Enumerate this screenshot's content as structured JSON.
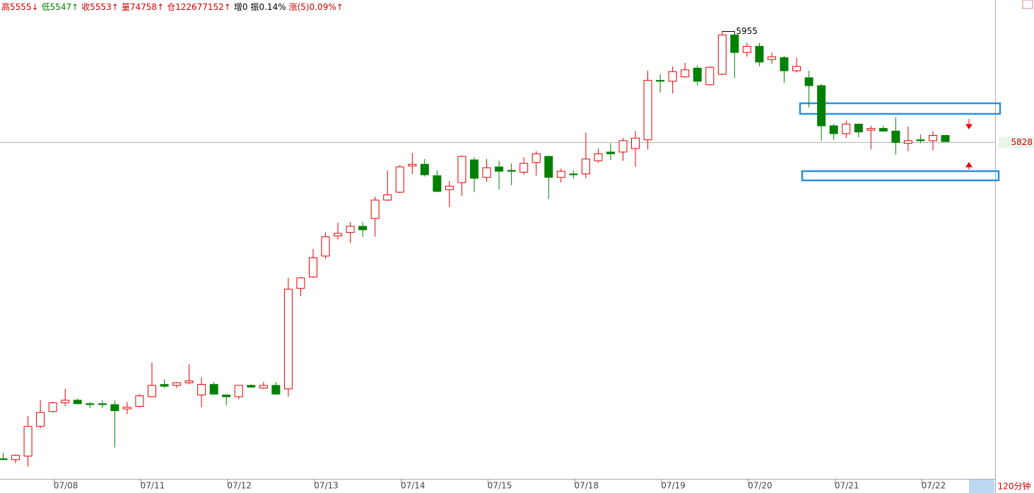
{
  "chart_data": {
    "type": "candlestick",
    "header": [
      {
        "text": "高5555↓",
        "color": "#d00000"
      },
      {
        "text": "低5547↑",
        "color": "#008000"
      },
      {
        "text": "收5553↑",
        "color": "#d00000"
      },
      {
        "text": "量74758↑",
        "color": "#d00000"
      },
      {
        "text": "仓122677152↑",
        "color": "#d00000"
      },
      {
        "text": "增0",
        "color": "#000000"
      },
      {
        "text": "振0.14%",
        "color": "#000000"
      },
      {
        "text": "涨(5)0.09%↑",
        "color": "#d00000"
      }
    ],
    "period": "120分钟",
    "categories": [
      null,
      null,
      null,
      null,
      "07/08",
      null,
      null,
      null,
      null,
      null,
      null,
      "07/11",
      null,
      null,
      null,
      null,
      null,
      null,
      "07/12",
      null,
      null,
      null,
      null,
      null,
      null,
      "07/13",
      null,
      null,
      null,
      null,
      null,
      null,
      "07/14",
      null,
      null,
      null,
      null,
      null,
      null,
      "07/15",
      null,
      null,
      null,
      null,
      null,
      null,
      "07/18",
      null,
      null,
      null,
      null,
      null,
      null,
      "07/19",
      null,
      null,
      null,
      null,
      null,
      null,
      "07/20",
      null,
      null,
      null,
      null,
      null,
      null,
      "07/21",
      null,
      null,
      null,
      null,
      null,
      null,
      "07/22",
      null,
      null
    ],
    "open": [
      5466,
      5465,
      5469,
      5503,
      5520,
      5530,
      5533,
      5529,
      5529,
      5528,
      5523,
      5526,
      5537,
      5551,
      5550,
      5553,
      5539,
      5551,
      5539,
      5537,
      5550,
      5547,
      5550,
      5546,
      5661,
      5674,
      5698,
      5721,
      5725,
      5732,
      5741,
      5762,
      5771,
      5801,
      5803,
      5790,
      5774,
      5782,
      5808,
      5788,
      5800,
      5796,
      5794,
      5805,
      5812,
      5788,
      5792,
      5792,
      5807,
      5817,
      5817,
      5821,
      5831,
      5899,
      5898,
      5903,
      5913,
      5894,
      5906,
      5951,
      5931,
      5938,
      5923,
      5925,
      5910,
      5902,
      5893,
      5847,
      5838,
      5849,
      5842,
      5844,
      5841,
      5827,
      5831,
      5830,
      5836
    ],
    "high": [
      5473,
      5471,
      5515,
      5533,
      5531,
      5546,
      5535,
      5531,
      5533,
      5533,
      5531,
      5540,
      5576,
      5557,
      5554,
      5574,
      5559,
      5554,
      5539,
      5550,
      5551,
      5554,
      5554,
      5673,
      5674,
      5706,
      5725,
      5736,
      5737,
      5737,
      5766,
      5796,
      5802,
      5816,
      5809,
      5796,
      5784,
      5813,
      5811,
      5809,
      5807,
      5804,
      5811,
      5818,
      5813,
      5798,
      5796,
      5839,
      5821,
      5827,
      5833,
      5841,
      5910,
      5906,
      5915,
      5919,
      5916,
      5915,
      5955,
      5953,
      5942,
      5942,
      5931,
      5927,
      5925,
      5910,
      5895,
      5849,
      5853,
      5849,
      5847,
      5847,
      5857,
      5846,
      5837,
      5841,
      5836
    ],
    "low": [
      5464,
      5461,
      5457,
      5501,
      5519,
      5526,
      5528,
      5524,
      5524,
      5479,
      5517,
      5525,
      5537,
      5547,
      5547,
      5551,
      5525,
      5539,
      5527,
      5534,
      5547,
      5546,
      5539,
      5537,
      5652,
      5673,
      5695,
      5717,
      5713,
      5720,
      5720,
      5761,
      5770,
      5792,
      5789,
      5771,
      5754,
      5767,
      5771,
      5783,
      5774,
      5779,
      5791,
      5790,
      5763,
      5782,
      5787,
      5787,
      5805,
      5808,
      5807,
      5800,
      5820,
      5885,
      5884,
      5902,
      5893,
      5893,
      5905,
      5902,
      5926,
      5915,
      5918,
      5896,
      5908,
      5868,
      5830,
      5831,
      5833,
      5834,
      5820,
      5840,
      5814,
      5818,
      5827,
      5819,
      5829
    ],
    "close": [
      5465,
      5470,
      5503,
      5519,
      5530,
      5533,
      5529,
      5528,
      5528,
      5521,
      5525,
      5538,
      5550,
      5549,
      5553,
      5555,
      5551,
      5540,
      5537,
      5550,
      5548,
      5550,
      5540,
      5660,
      5673,
      5696,
      5720,
      5724,
      5732,
      5728,
      5762,
      5768,
      5800,
      5803,
      5791,
      5772,
      5778,
      5812,
      5787,
      5799,
      5795,
      5795,
      5804,
      5815,
      5788,
      5795,
      5791,
      5809,
      5815,
      5815,
      5830,
      5833,
      5899,
      5898,
      5909,
      5911,
      5898,
      5914,
      5951,
      5931,
      5938,
      5920,
      5926,
      5910,
      5915,
      5893,
      5847,
      5838,
      5849,
      5840,
      5844,
      5841,
      5828,
      5830,
      5830,
      5836,
      5829
    ],
    "ylim": [
      5443,
      5991
    ],
    "last_price": 5828,
    "up_color": "#e00000",
    "down_color": "#008000"
  }
}
